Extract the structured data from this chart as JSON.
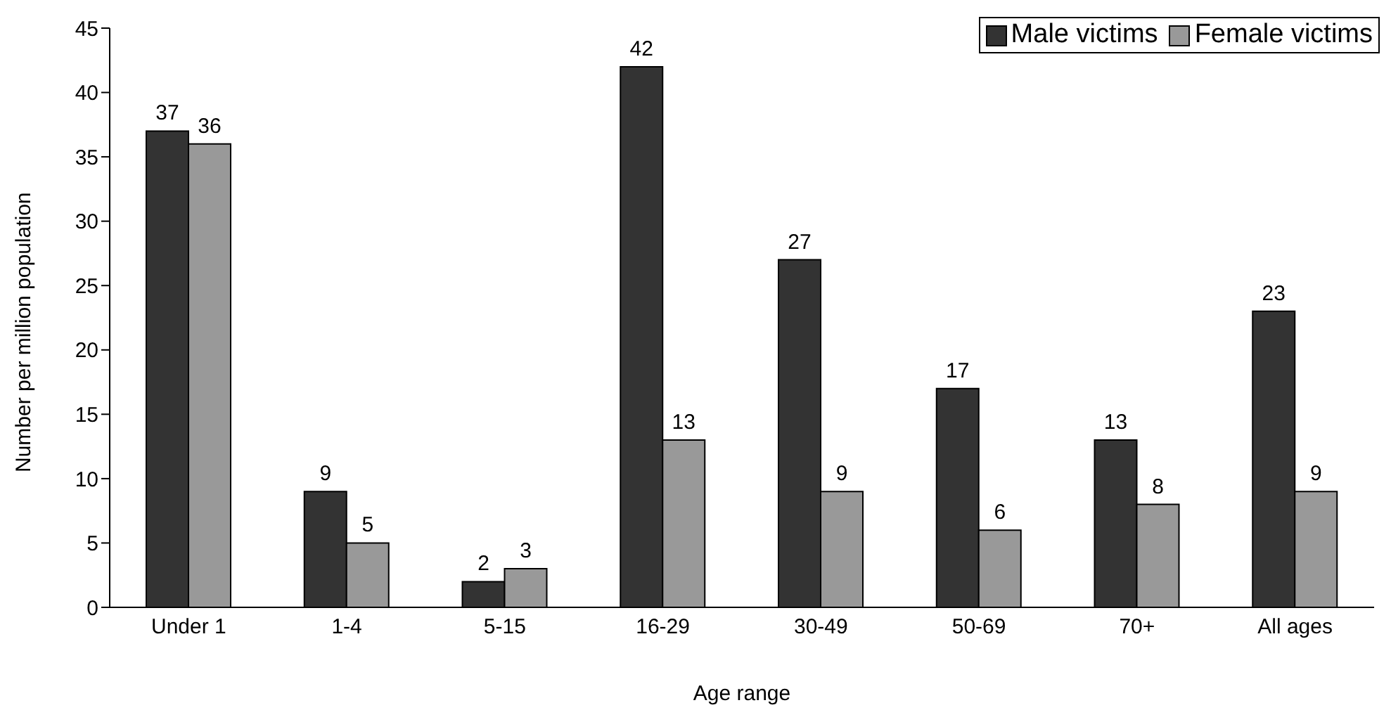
{
  "chart_data": {
    "type": "bar",
    "xlabel": "Age range",
    "ylabel": "Number per million population",
    "categories": [
      "Under 1",
      "1-4",
      "5-15",
      "16-29",
      "30-49",
      "50-69",
      "70+",
      "All ages"
    ],
    "series": [
      {
        "name": "Male victims",
        "color": "#333333",
        "values": [
          37,
          9,
          2,
          42,
          27,
          17,
          13,
          23
        ]
      },
      {
        "name": "Female victims",
        "color": "#999999",
        "values": [
          36,
          5,
          3,
          13,
          9,
          6,
          8,
          9
        ]
      }
    ],
    "ylim": [
      0,
      45
    ],
    "yticks": [
      0,
      5,
      10,
      15,
      20,
      25,
      30,
      35,
      40,
      45
    ],
    "grid": false,
    "legend": "top right",
    "data_labels": true
  }
}
